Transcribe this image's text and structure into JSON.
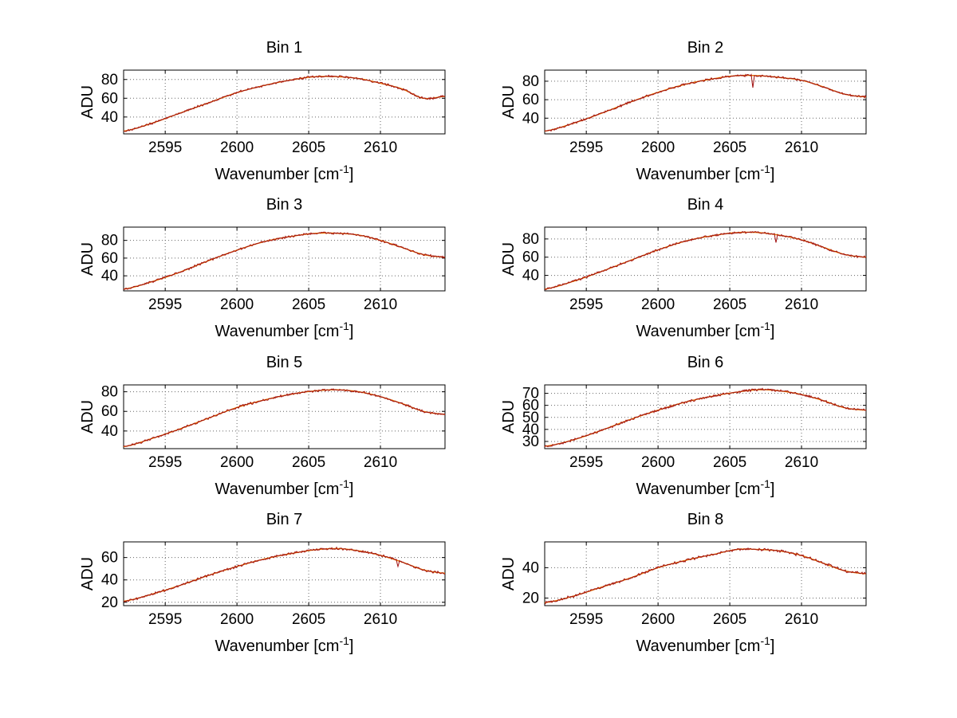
{
  "figure": {
    "background": "#ffffff"
  },
  "chart_data": {
    "type": "line",
    "layout": {
      "rows": 4,
      "cols": 2,
      "grid": "dotted",
      "legend": "none"
    },
    "ylabel": "ADU",
    "xlabel_main": "Wavenumber [cm",
    "xlabel_sup": "-1",
    "xlabel_close": "]",
    "xlim": [
      2592.1,
      2614.5
    ],
    "x_ticks": [
      2595,
      2600,
      2605,
      2610
    ],
    "x_points": [
      2592.1,
      2594,
      2596,
      2598,
      2600,
      2602,
      2604,
      2605.5,
      2607,
      2608.5,
      2610,
      2611.5,
      2613,
      2614.5
    ],
    "colors": {
      "data": "#a01010",
      "fit": "#e87400",
      "axis": "#000000",
      "grid": "#666666",
      "text": "#000000"
    },
    "plots": [
      {
        "title": "Bin 1",
        "ylim": [
          22,
          90
        ],
        "y_ticks": [
          40,
          60,
          80
        ],
        "y_points": [
          25,
          33,
          44,
          55,
          66,
          74,
          80,
          83,
          83,
          81,
          76,
          70,
          60,
          62
        ],
        "spikes": [],
        "noise_amp": 1.4
      },
      {
        "title": "Bin 2",
        "ylim": [
          23,
          92
        ],
        "y_ticks": [
          40,
          60,
          80
        ],
        "y_points": [
          26,
          34,
          45,
          57,
          68,
          77,
          83,
          86,
          86,
          84,
          81,
          74,
          66,
          63
        ],
        "spikes": [
          {
            "x": 2606.6,
            "y": 73
          }
        ],
        "noise_amp": 1.4
      },
      {
        "title": "Bin 3",
        "ylim": [
          23,
          95
        ],
        "y_ticks": [
          40,
          60,
          80
        ],
        "y_points": [
          25,
          33,
          44,
          57,
          69,
          79,
          85,
          88,
          88,
          86,
          80,
          72,
          64,
          61
        ],
        "spikes": [],
        "noise_amp": 1.5
      },
      {
        "title": "Bin 4",
        "ylim": [
          23,
          93
        ],
        "y_ticks": [
          40,
          60,
          80
        ],
        "y_points": [
          25,
          33,
          44,
          56,
          68,
          78,
          84,
          87,
          87,
          84,
          79,
          71,
          63,
          60
        ],
        "spikes": [
          {
            "x": 2608.2,
            "y": 76
          }
        ],
        "noise_amp": 1.5
      },
      {
        "title": "Bin 5",
        "ylim": [
          22,
          87
        ],
        "y_ticks": [
          40,
          60,
          80
        ],
        "y_points": [
          24,
          32,
          42,
          53,
          64,
          72,
          78,
          81,
          82,
          80,
          75,
          68,
          60,
          57
        ],
        "spikes": [],
        "noise_amp": 1.4
      },
      {
        "title": "Bin 6",
        "ylim": [
          24,
          77
        ],
        "y_ticks": [
          30,
          40,
          50,
          60,
          70
        ],
        "y_points": [
          26,
          31,
          39,
          48,
          56,
          63,
          68,
          71,
          73,
          72,
          69,
          64,
          58,
          56
        ],
        "spikes": [],
        "noise_amp": 1.2
      },
      {
        "title": "Bin 7",
        "ylim": [
          17,
          74
        ],
        "y_ticks": [
          20,
          40,
          60
        ],
        "y_points": [
          21,
          27,
          35,
          44,
          52,
          59,
          64,
          67,
          68,
          66,
          62,
          56,
          49,
          46
        ],
        "spikes": [
          {
            "x": 2611.2,
            "y": 52
          }
        ],
        "noise_amp": 1.3
      },
      {
        "title": "Bin 8",
        "ylim": [
          15,
          57
        ],
        "y_ticks": [
          20,
          40
        ],
        "y_points": [
          17,
          21,
          27,
          33,
          40,
          45,
          49,
          52,
          52,
          51,
          48,
          43,
          38,
          36
        ],
        "spikes": [],
        "noise_amp": 1.1
      }
    ]
  }
}
